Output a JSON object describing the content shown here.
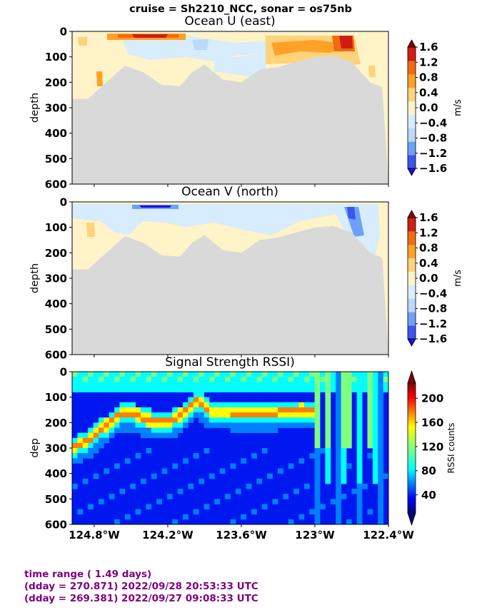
{
  "suptitle": "cruise = Sh2210_NCC,  sonar = os75nb",
  "footer": {
    "line1": "time range ( 1.49 days)",
    "line2": "(dday = 270.871) 2022/09/28 20:53:33 UTC",
    "line3": "(dday = 269.381) 2022/09/27 09:08:33 UTC"
  },
  "colors": {
    "bottom_mask": "#d9d9d9",
    "jet_levels": [
      "#00007f",
      "#0000ff",
      "#007fff",
      "#00ffff",
      "#7fff7f",
      "#ffff00",
      "#ff7f00",
      "#ff0000",
      "#7f0000"
    ],
    "velocity_levels": [
      "#1a0fe0",
      "#3b55f0",
      "#6fa0f7",
      "#bcd8fb",
      "#d7ecfc",
      "#fff3c8",
      "#ffd37a",
      "#ffa126",
      "#f26b10",
      "#cf1d12",
      "#8c0000"
    ]
  },
  "chart_data": [
    {
      "type": "heatmap",
      "title": "Ocean U (east)",
      "xlabel": "",
      "ylabel": "depth",
      "ylim": [
        600,
        0
      ],
      "yticks": [
        "0",
        "100",
        "200",
        "300",
        "400",
        "500",
        "600"
      ],
      "colorbar": {
        "label": "m/s",
        "ticks": [
          "1.6",
          "1.2",
          "0.8",
          "0.4",
          "0.0",
          "−0.4",
          "−0.8",
          "−1.2",
          "−1.6"
        ],
        "range": [
          -1.6,
          1.6
        ]
      },
      "bottom_depth_profile": {
        "lon": [
          -124.98,
          -124.85,
          -124.7,
          -124.55,
          -124.4,
          -124.25,
          -124.1,
          -124.0,
          -123.9,
          -123.75,
          -123.6,
          -123.45,
          -123.3,
          -123.15,
          -123.0,
          -122.85,
          -122.7,
          -122.55,
          -122.45
        ],
        "depth": [
          265,
          265,
          200,
          135,
          160,
          210,
          215,
          160,
          130,
          190,
          200,
          150,
          140,
          120,
          100,
          95,
          120,
          200,
          220
        ]
      }
    },
    {
      "type": "heatmap",
      "title": "Ocean V (north)",
      "xlabel": "",
      "ylabel": "depth",
      "ylim": [
        600,
        0
      ],
      "yticks": [
        "0",
        "100",
        "200",
        "300",
        "400",
        "500",
        "600"
      ],
      "colorbar": {
        "label": "m/s",
        "ticks": [
          "1.6",
          "1.2",
          "0.8",
          "0.4",
          "0.0",
          "−0.4",
          "−0.8",
          "−1.2",
          "−1.6"
        ],
        "range": [
          -1.6,
          1.6
        ]
      }
    },
    {
      "type": "heatmap",
      "title": "Signal Strength RSSI)",
      "xlabel": "",
      "ylabel": "dep",
      "ylim": [
        600,
        0
      ],
      "yticks": [
        "0",
        "100",
        "200",
        "300",
        "400",
        "500",
        "600"
      ],
      "xticks": [
        "124.8°W",
        "124.2°W",
        "123.6°W",
        "123°W",
        "122.4°W"
      ],
      "xtick_values": [
        -124.8,
        -124.2,
        -123.6,
        -123.0,
        -122.4
      ],
      "xlim": [
        -124.98,
        -122.4
      ],
      "colorbar": {
        "label": "RSSI counts",
        "ticks": [
          "200",
          "160",
          "120",
          "80",
          "40"
        ],
        "range": [
          10,
          225
        ]
      },
      "scattering_layer_depth": {
        "lon": [
          -124.98,
          -124.85,
          -124.75,
          -124.65,
          -124.55,
          -124.45,
          -124.35,
          -124.25,
          -124.15,
          -124.05,
          -123.95,
          -123.85,
          -123.7,
          -123.5,
          -123.3,
          -123.1,
          -123.0
        ],
        "depth": [
          300,
          270,
          230,
          190,
          160,
          170,
          190,
          200,
          190,
          155,
          110,
          160,
          160,
          165,
          160,
          150,
          160
        ]
      }
    }
  ]
}
